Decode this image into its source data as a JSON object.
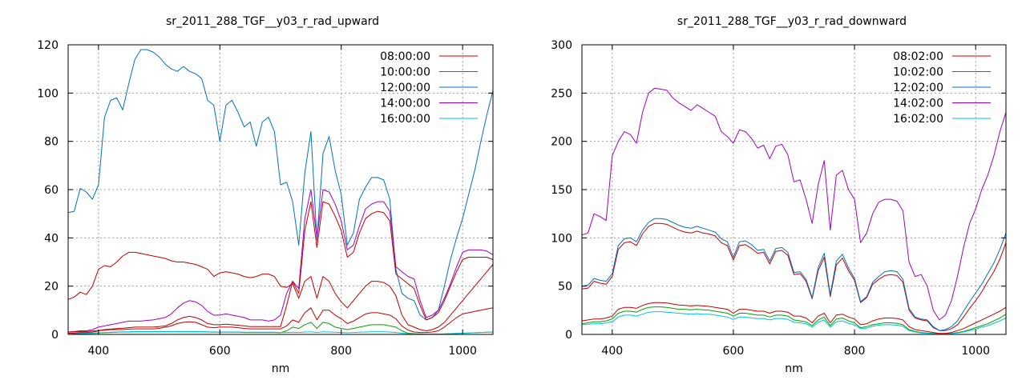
{
  "chart_data": [
    {
      "type": "line",
      "title": "sr_2011_288_TGF__y03_r_rad_upward",
      "xlabel": "nm",
      "ylabel": "",
      "xlim": [
        350,
        1050
      ],
      "ylim": [
        0,
        120
      ],
      "xticks": [
        400,
        600,
        800,
        1000
      ],
      "yticks": [
        0,
        20,
        40,
        60,
        80,
        100,
        120
      ],
      "grid": true,
      "legend_position": "top-right",
      "x": [
        350,
        360,
        370,
        380,
        390,
        400,
        410,
        420,
        430,
        440,
        450,
        460,
        470,
        480,
        490,
        500,
        510,
        520,
        530,
        540,
        550,
        560,
        570,
        580,
        590,
        600,
        610,
        620,
        630,
        640,
        650,
        660,
        670,
        680,
        690,
        700,
        710,
        720,
        730,
        740,
        750,
        760,
        770,
        780,
        790,
        800,
        810,
        820,
        830,
        840,
        850,
        860,
        870,
        880,
        890,
        900,
        910,
        920,
        930,
        940,
        950,
        960,
        970,
        980,
        990,
        1000,
        1010,
        1020,
        1030,
        1040,
        1050
      ],
      "series": [
        {
          "name": "08:00:00",
          "color": "#c00000",
          "values": [
            14.5,
            15.5,
            17.5,
            16.5,
            20,
            27,
            28.5,
            28,
            30,
            32.5,
            34,
            34,
            33.5,
            33,
            32.5,
            32,
            31.5,
            30.5,
            30,
            30,
            29.5,
            29,
            28,
            27,
            24,
            25.5,
            26,
            25.5,
            25,
            24,
            23.5,
            24,
            25,
            25,
            24,
            20,
            19.5,
            21,
            15,
            22,
            24,
            15,
            24,
            22,
            17,
            13.5,
            11,
            14,
            17,
            20,
            22,
            22,
            21.5,
            20,
            16,
            8,
            4,
            3,
            2,
            1.5,
            2,
            3,
            5,
            8,
            11,
            14,
            17,
            20,
            23,
            26,
            29
          ]
        },
        {
          "name": "10:00:00",
          "color": "#00a000",
          "values": [
            0,
            0.2,
            0.3,
            0.3,
            0.4,
            0.6,
            0.7,
            0.8,
            0.9,
            1,
            1,
            1.1,
            1.1,
            1.1,
            1.1,
            1.1,
            1.1,
            1.1,
            1.1,
            1.1,
            1.1,
            1.1,
            1.1,
            1.0,
            0.9,
            0.9,
            0.9,
            0.9,
            0.9,
            0.8,
            0.8,
            0.8,
            0.8,
            0.8,
            0.8,
            0.7,
            1.5,
            3,
            2.5,
            4,
            5,
            2.5,
            5,
            4.5,
            3,
            2.5,
            2,
            2.5,
            3,
            3.5,
            4,
            4,
            4,
            3.5,
            3,
            1.5,
            0.5,
            0.3,
            0.2,
            0.1,
            0.1,
            0.1,
            0.2,
            0.3,
            0.4,
            0.5,
            0.6,
            0.7,
            0.8,
            0.9,
            1
          ]
        },
        {
          "name": "12:00:00",
          "color": "#0070c0",
          "values": [
            50.5,
            51,
            60.5,
            59,
            56,
            62,
            90,
            97,
            98,
            93,
            104,
            114,
            118,
            118,
            117,
            115,
            112,
            110,
            109,
            111,
            109,
            108,
            106,
            97,
            95,
            80,
            95,
            97,
            92,
            86,
            88,
            78,
            88,
            90,
            84,
            62,
            63,
            55,
            37,
            67,
            84,
            39,
            75,
            82,
            68,
            58,
            37,
            42,
            56,
            61,
            65,
            65,
            64,
            56,
            27,
            17,
            15,
            14,
            8,
            6,
            7,
            10,
            20,
            31,
            40,
            48,
            58,
            68,
            80,
            91,
            101
          ]
        },
        {
          "name": "14:00:00",
          "color": "#a000c0",
          "values": [
            1,
            1.2,
            1.5,
            1.5,
            2,
            3,
            3.5,
            4,
            4.5,
            5,
            5.5,
            5.5,
            5.5,
            5.8,
            6,
            6.5,
            7,
            8.5,
            11,
            13,
            14,
            13.5,
            12,
            9.5,
            8,
            8,
            8.5,
            8,
            7.5,
            7,
            6,
            6,
            6,
            5.5,
            6,
            8,
            17,
            22,
            19,
            48,
            60,
            40,
            60,
            59,
            54,
            47,
            35,
            37,
            45,
            52,
            54,
            55,
            55,
            51,
            28,
            26,
            24,
            23,
            14,
            7,
            8,
            10,
            15,
            21,
            28,
            34,
            35,
            35,
            35,
            34.5,
            33
          ]
        },
        {
          "name": "16:00:00",
          "color": "#00c0e0",
          "values": [
            0.4,
            0.5,
            0.5,
            0.5,
            0.6,
            0.7,
            0.8,
            0.9,
            1,
            1.1,
            1.1,
            1.2,
            1.2,
            1.2,
            1.2,
            1.2,
            1.2,
            1.2,
            1.2,
            1.2,
            1.2,
            1.2,
            1.2,
            1.1,
            1.0,
            1.0,
            1.0,
            1.0,
            1.0,
            0.9,
            0.9,
            0.9,
            0.9,
            0.9,
            0.9,
            0.8,
            0.8,
            0.9,
            0.8,
            1,
            1.1,
            0.8,
            1.1,
            1.0,
            0.9,
            0.8,
            0.7,
            0.8,
            0.9,
            1,
            1.1,
            1.1,
            1.1,
            1.0,
            0.8,
            0.5,
            0.3,
            0.2,
            0.1,
            0.1,
            0.1,
            0.1,
            0.2,
            0.3,
            0.4,
            0.5,
            0.6,
            0.7,
            0.8,
            0.9,
            1
          ]
        }
      ],
      "extra_series": [
        {
          "name": "",
          "color": "#c00000",
          "values": [
            0.5,
            0.6,
            0.8,
            0.8,
            1,
            1.5,
            1.8,
            2,
            2,
            2,
            2.2,
            2.3,
            2.3,
            2.3,
            2.3,
            2.5,
            3,
            3.5,
            4.5,
            5,
            5.2,
            5,
            4,
            3,
            2.8,
            3,
            3,
            3,
            2.8,
            2.5,
            2.3,
            2.3,
            2.3,
            2.3,
            2.3,
            2.3,
            3.5,
            6,
            5,
            9,
            11,
            6,
            10,
            10,
            8,
            6.5,
            4.5,
            5.5,
            7,
            8.5,
            9,
            9,
            8.5,
            8,
            6.5,
            3.5,
            1.8,
            1,
            0.8,
            0.8,
            1,
            1.5,
            3,
            5,
            7,
            8.5,
            9,
            9.5,
            10,
            10.5,
            11
          ]
        },
        {
          "name": "",
          "color": "#c00000",
          "values": [
            1,
            1.1,
            1.2,
            1.2,
            1.4,
            1.6,
            2,
            2.2,
            2.4,
            2.6,
            2.8,
            3,
            3,
            3,
            3,
            3.2,
            3.5,
            4.5,
            6,
            7,
            7.5,
            7,
            6,
            4.5,
            4,
            4,
            4.2,
            4,
            3.8,
            3.5,
            3.2,
            3.2,
            3.2,
            3.2,
            3.2,
            3.2,
            12,
            22,
            17,
            43,
            55,
            36,
            55,
            54,
            49,
            43,
            32,
            34,
            42,
            48,
            50,
            51,
            50.5,
            47,
            25,
            23,
            21,
            19,
            12,
            6,
            7,
            9,
            14,
            20,
            26,
            31,
            32,
            32,
            32,
            32,
            31
          ]
        }
      ]
    },
    {
      "type": "line",
      "title": "sr_2011_288_TGF__y03_r_rad_downward",
      "xlabel": "nm",
      "ylabel": "",
      "xlim": [
        350,
        1050
      ],
      "ylim": [
        0,
        300
      ],
      "xticks": [
        400,
        600,
        800,
        1000
      ],
      "yticks": [
        0,
        50,
        100,
        150,
        200,
        250,
        300
      ],
      "grid": true,
      "legend_position": "top-right",
      "x": [
        350,
        360,
        370,
        380,
        390,
        400,
        410,
        420,
        430,
        440,
        450,
        460,
        470,
        480,
        490,
        500,
        510,
        520,
        530,
        540,
        550,
        560,
        570,
        580,
        590,
        600,
        610,
        620,
        630,
        640,
        650,
        660,
        670,
        680,
        690,
        700,
        710,
        720,
        730,
        740,
        750,
        760,
        770,
        780,
        790,
        800,
        810,
        820,
        830,
        840,
        850,
        860,
        870,
        880,
        890,
        900,
        910,
        920,
        930,
        940,
        950,
        960,
        970,
        980,
        990,
        1000,
        1010,
        1020,
        1030,
        1040,
        1050
      ],
      "series": [
        {
          "name": "08:02:00",
          "color": "#c00000",
          "values": [
            47,
            48,
            55,
            53,
            52,
            60,
            88,
            95,
            96,
            92,
            104,
            112,
            115,
            115,
            114,
            111,
            108,
            106,
            105,
            107,
            105,
            104,
            102,
            95,
            92,
            77,
            92,
            93,
            89,
            84,
            85,
            73,
            86,
            87,
            82,
            62,
            63,
            55,
            37,
            66,
            80,
            39,
            72,
            79,
            66,
            56,
            33,
            38,
            52,
            57,
            61,
            62,
            61,
            54,
            25,
            17,
            15,
            14,
            7,
            4,
            4,
            6,
            10,
            18,
            27,
            35,
            44,
            55,
            65,
            78,
            95
          ]
        },
        {
          "name": "10:02:00",
          "color": "#00a000",
          "values": [
            11,
            12,
            13,
            13,
            14,
            16,
            22,
            24,
            24,
            23,
            26,
            28,
            28.5,
            28.5,
            28,
            27,
            26,
            26,
            25.5,
            26,
            25.5,
            25,
            24,
            23,
            22,
            19,
            22,
            22,
            21,
            20,
            20,
            18,
            20,
            20,
            19,
            15,
            14,
            13,
            9,
            15,
            18,
            9,
            16,
            17,
            14,
            12,
            7,
            8,
            10,
            11,
            12,
            12,
            11.5,
            10,
            5,
            3,
            2,
            1.5,
            1,
            0.5,
            0.5,
            1,
            2,
            3,
            5,
            7,
            9,
            11,
            14,
            17,
            21
          ]
        },
        {
          "name": "12:02:00",
          "color": "#0070c0",
          "values": [
            50,
            51,
            58,
            56,
            55,
            63,
            92,
            99,
            100,
            96,
            108,
            116,
            120,
            120,
            119,
            116,
            113,
            111,
            110,
            112,
            110,
            108,
            106,
            99,
            96,
            80,
            96,
            97,
            93,
            87,
            88,
            76,
            89,
            90,
            85,
            64,
            65,
            57,
            38,
            69,
            84,
            41,
            76,
            83,
            69,
            58,
            34,
            39,
            54,
            60,
            65,
            66,
            65,
            57,
            27,
            18,
            16,
            15,
            8,
            4,
            5,
            8,
            14,
            24,
            34,
            43,
            52,
            63,
            74,
            88,
            105
          ]
        },
        {
          "name": "14:02:00",
          "color": "#a000c0",
          "values": [
            103,
            105,
            125,
            122,
            118,
            185,
            200,
            210,
            207,
            198,
            230,
            250,
            255,
            254,
            253,
            245,
            240,
            236,
            232,
            238,
            234,
            230,
            226,
            210,
            205,
            198,
            212,
            210,
            203,
            193,
            196,
            182,
            195,
            197,
            186,
            158,
            160,
            140,
            115,
            155,
            180,
            108,
            165,
            170,
            150,
            140,
            95,
            105,
            125,
            137,
            140,
            140,
            138,
            128,
            75,
            60,
            62,
            50,
            25,
            15,
            20,
            35,
            60,
            90,
            115,
            130,
            150,
            165,
            185,
            210,
            230
          ]
        },
        {
          "name": "16:02:00",
          "color": "#00c0e0",
          "values": [
            10,
            10.5,
            11,
            11,
            12,
            13,
            18,
            20,
            20,
            19,
            21,
            23,
            23.5,
            23.5,
            23,
            22.5,
            22,
            21.5,
            21,
            21.5,
            21,
            21,
            20,
            19,
            18,
            15.5,
            18,
            18,
            17,
            16.5,
            16.5,
            15,
            16.5,
            16.5,
            15.5,
            12.5,
            12,
            11,
            7.5,
            12.5,
            15,
            7.5,
            13,
            14,
            11.5,
            10,
            6,
            6.5,
            8.5,
            9.5,
            10,
            10,
            9.5,
            8.5,
            4,
            2.5,
            1.5,
            1.2,
            0.8,
            0.4,
            0.4,
            0.8,
            1.5,
            2.5,
            4,
            5.5,
            7.5,
            9,
            11.5,
            14,
            17
          ]
        }
      ],
      "extra_series": [
        {
          "name": "",
          "color": "#c00000",
          "values": [
            14,
            15,
            16,
            16,
            17,
            19,
            26,
            28,
            28,
            27,
            30,
            32,
            33,
            33,
            32.5,
            31.5,
            30.5,
            30,
            29.5,
            30,
            29.5,
            29,
            28,
            27,
            26,
            22,
            26,
            26,
            25,
            24,
            24,
            22,
            24,
            24,
            23,
            19,
            19,
            17,
            12,
            19,
            22,
            12,
            20,
            21,
            18,
            16,
            10,
            11,
            14,
            16,
            17,
            17,
            16.5,
            15,
            8,
            5,
            4,
            3,
            2,
            1,
            1,
            2,
            4,
            6,
            9,
            12,
            15,
            18,
            21,
            24,
            28
          ]
        }
      ]
    }
  ]
}
